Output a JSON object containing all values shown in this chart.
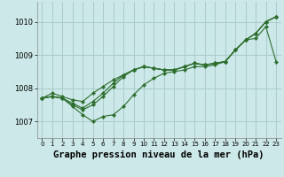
{
  "background_color": "#cce8e8",
  "grid_color": "#aacccc",
  "line_color": "#2d6e2d",
  "marker_color": "#2d6e2d",
  "xlabel": "Graphe pression niveau de la mer (hPa)",
  "xlabel_fontsize": 7.5,
  "ylim": [
    1006.5,
    1010.6
  ],
  "xlim": [
    -0.5,
    23.5
  ],
  "yticks": [
    1007,
    1008,
    1009,
    1010
  ],
  "xticks": [
    0,
    1,
    2,
    3,
    4,
    5,
    6,
    7,
    8,
    9,
    10,
    11,
    12,
    13,
    14,
    15,
    16,
    17,
    18,
    19,
    20,
    21,
    22,
    23
  ],
  "series": [
    [
      1007.7,
      1007.85,
      1007.75,
      1007.65,
      1007.6,
      1007.85,
      1008.05,
      1008.25,
      1008.4,
      1008.55,
      1008.65,
      1008.6,
      1008.55,
      1008.55,
      1008.65,
      1008.75,
      1008.7,
      1008.75,
      1008.8,
      1009.15,
      1009.45,
      1009.65,
      1010.0,
      1010.15
    ],
    [
      1007.7,
      1007.75,
      1007.7,
      1007.45,
      1007.2,
      1007.0,
      1007.15,
      1007.2,
      1007.45,
      1007.8,
      1008.1,
      1008.3,
      1008.45,
      1008.5,
      1008.55,
      1008.65,
      1008.65,
      1008.7,
      1008.8,
      1009.15,
      1009.45,
      1009.65,
      1010.0,
      1010.15
    ],
    [
      1007.7,
      1007.75,
      1007.7,
      1007.5,
      1007.35,
      1007.5,
      1007.75,
      1008.05,
      1008.35,
      1008.55,
      1008.65,
      1008.6,
      1008.55,
      1008.55,
      1008.65,
      1008.75,
      1008.7,
      1008.75,
      1008.8,
      1009.15,
      1009.45,
      1009.65,
      1010.0,
      1010.15
    ],
    [
      1007.7,
      1007.75,
      1007.7,
      1007.55,
      1007.4,
      1007.6,
      1007.85,
      1008.15,
      1008.4,
      1008.55,
      1008.65,
      1008.6,
      1008.55,
      1008.55,
      1008.65,
      1008.75,
      1008.7,
      1008.75,
      1008.8,
      1009.15,
      1009.45,
      1009.5,
      1009.85,
      1008.8
    ]
  ]
}
